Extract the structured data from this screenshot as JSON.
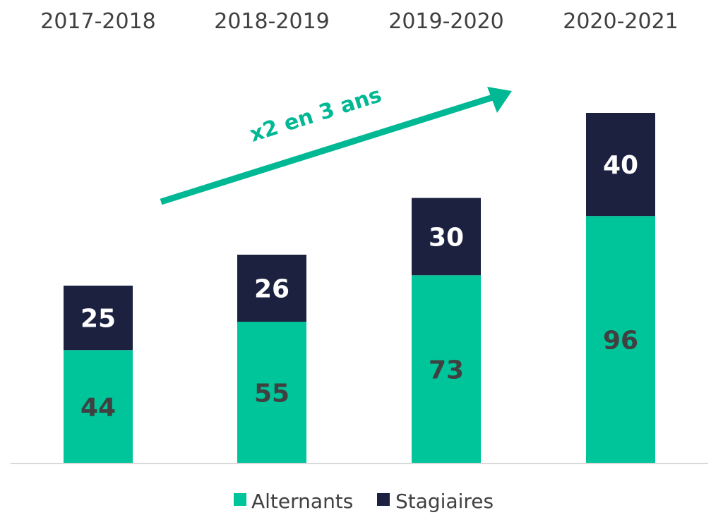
{
  "chart_data": {
    "type": "bar",
    "stacked": true,
    "categories": [
      "2017-2018",
      "2018-2019",
      "2019-2020",
      "2020-2021"
    ],
    "series": [
      {
        "name": "Alternants",
        "values": [
          44,
          55,
          73,
          96
        ],
        "color": "#00c49a",
        "label_color": "#404040"
      },
      {
        "name": "Stagiaires",
        "values": [
          25,
          26,
          30,
          40
        ],
        "color": "#1c2140",
        "label_color": "#ffffff"
      }
    ],
    "title": "",
    "xlabel": "",
    "ylabel": "",
    "ylim": [
      0,
      136
    ],
    "grid": false,
    "legend": "bottom",
    "category_labels_position": "top",
    "annotation": {
      "text": "x2 en 3 ans",
      "color": "#00b894"
    }
  }
}
